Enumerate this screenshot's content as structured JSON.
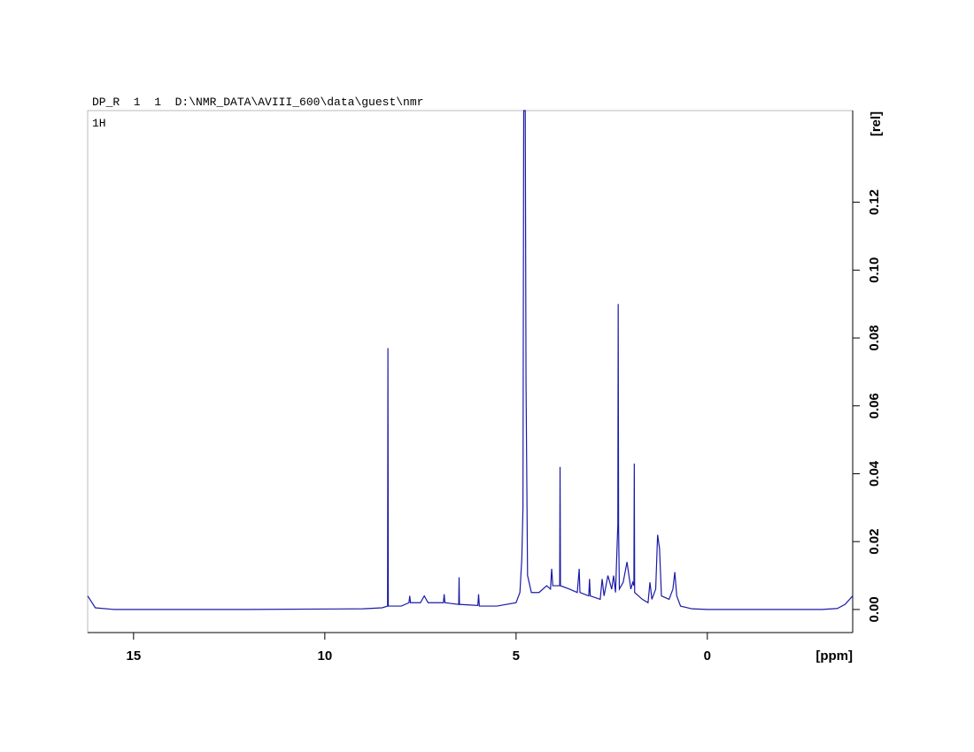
{
  "chart_data": {
    "type": "line",
    "header": "DP_R  1  1  D:\\NMR_DATA\\AVIII_600\\data\\guest\\nmr",
    "annotation": "1H",
    "xlabel": "[ppm]",
    "ylabel": "[rel]",
    "xlim": [
      16.2,
      -3.8
    ],
    "ylim": [
      -0.0068,
      0.147
    ],
    "xticks": [
      15,
      10,
      5,
      0
    ],
    "yticks": [
      {
        "value": 0,
        "label": "0.00"
      },
      {
        "value": 0.02,
        "label": "0.02"
      },
      {
        "value": 0.04,
        "label": "0.04"
      },
      {
        "value": 0.06,
        "label": "0.06"
      },
      {
        "value": 0.08,
        "label": "0.08"
      },
      {
        "value": 0.1,
        "label": "0.10"
      },
      {
        "value": 0.12,
        "label": "0.12"
      }
    ],
    "series": [
      {
        "color": "#1a1aa8",
        "x": [
          16.2,
          16.0,
          15.5,
          12,
          9.0,
          8.5,
          8.36,
          8.35,
          8.34,
          8.0,
          7.8,
          7.78,
          7.76,
          7.5,
          7.4,
          7.3,
          6.9,
          6.88,
          6.86,
          6.5,
          6.49,
          6.48,
          6.0,
          5.98,
          5.96,
          5.5,
          5.0,
          4.9,
          4.85,
          4.82,
          4.8,
          4.76,
          4.74,
          4.7,
          4.6,
          4.4,
          4.2,
          4.1,
          4.07,
          4.04,
          3.9,
          3.86,
          3.85,
          3.84,
          3.6,
          3.4,
          3.35,
          3.33,
          3.1,
          3.08,
          3.06,
          2.8,
          2.75,
          2.7,
          2.6,
          2.5,
          2.45,
          2.4,
          2.34,
          2.33,
          2.32,
          2.3,
          2.2,
          2.1,
          2.0,
          1.95,
          1.92,
          1.91,
          1.9,
          1.7,
          1.55,
          1.5,
          1.45,
          1.35,
          1.3,
          1.25,
          1.2,
          1.0,
          0.9,
          0.85,
          0.8,
          0.7,
          0.4,
          0,
          -3.0,
          -3.4,
          -3.6,
          -3.8
        ],
        "values": [
          0.004,
          0.0005,
          0,
          0,
          0.0002,
          0.0005,
          0.001,
          0.077,
          0.001,
          0.001,
          0.002,
          0.004,
          0.002,
          0.002,
          0.004,
          0.002,
          0.002,
          0.0045,
          0.002,
          0.0015,
          0.0095,
          0.0015,
          0.0012,
          0.0045,
          0.001,
          0.001,
          0.002,
          0.005,
          0.015,
          0.03,
          0.147,
          0.147,
          0.067,
          0.01,
          0.005,
          0.005,
          0.007,
          0.006,
          0.012,
          0.007,
          0.007,
          0.007,
          0.042,
          0.007,
          0.006,
          0.005,
          0.012,
          0.005,
          0.004,
          0.009,
          0.004,
          0.003,
          0.009,
          0.004,
          0.01,
          0.006,
          0.01,
          0.005,
          0.025,
          0.09,
          0.024,
          0.006,
          0.008,
          0.014,
          0.006,
          0.008,
          0.007,
          0.043,
          0.005,
          0.003,
          0.002,
          0.008,
          0.003,
          0.006,
          0.022,
          0.018,
          0.004,
          0.003,
          0.006,
          0.011,
          0.004,
          0.001,
          0.0002,
          0,
          0,
          0.0003,
          0.0015,
          0.004
        ]
      }
    ]
  }
}
